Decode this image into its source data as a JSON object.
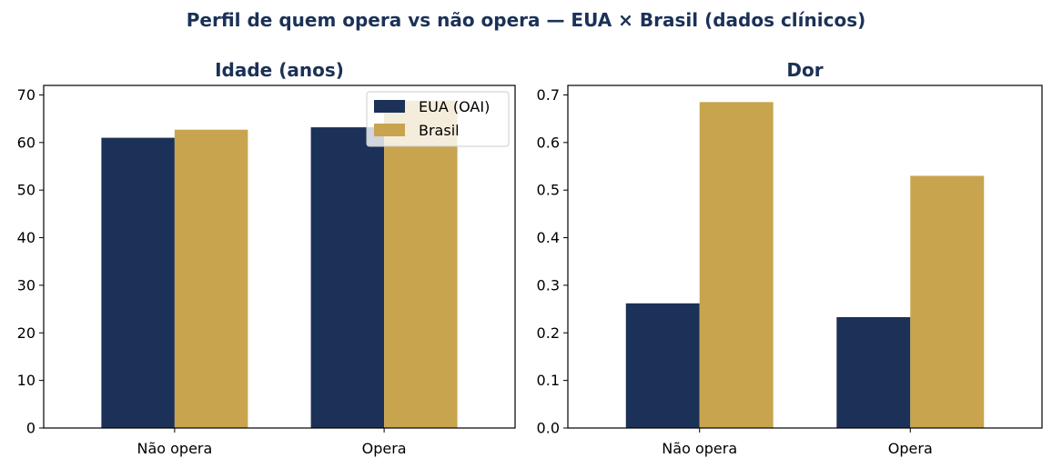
{
  "figure_title": "Perfil de quem opera vs não opera — EUA × Brasil (dados clínicos)",
  "colors": {
    "title": "#1b3157",
    "eua": "#1c3157",
    "brasil": "#c8a44e"
  },
  "chart_data": [
    {
      "type": "bar",
      "title": "Idade (anos)",
      "categories": [
        "Não opera",
        "Opera"
      ],
      "series": [
        {
          "name": "EUA (OAI)",
          "values": [
            61.0,
            63.2
          ]
        },
        {
          "name": "Brasil",
          "values": [
            62.7,
            68.8
          ]
        }
      ],
      "ylim": [
        0,
        72
      ],
      "yticks": [
        0,
        10,
        20,
        30,
        40,
        50,
        60,
        70
      ],
      "ytick_labels": [
        "0",
        "10",
        "20",
        "30",
        "40",
        "50",
        "60",
        "70"
      ],
      "legend": "top-right",
      "grid": false
    },
    {
      "type": "bar",
      "title": "Dor",
      "categories": [
        "Não opera",
        "Opera"
      ],
      "series": [
        {
          "name": "EUA (OAI)",
          "values": [
            0.262,
            0.233
          ]
        },
        {
          "name": "Brasil",
          "values": [
            0.685,
            0.53
          ]
        }
      ],
      "ylim": [
        0,
        0.72
      ],
      "yticks": [
        0.0,
        0.1,
        0.2,
        0.3,
        0.4,
        0.5,
        0.6,
        0.7
      ],
      "ytick_labels": [
        "0.0",
        "0.1",
        "0.2",
        "0.3",
        "0.4",
        "0.5",
        "0.6",
        "0.7"
      ],
      "legend": "none",
      "grid": false
    }
  ]
}
